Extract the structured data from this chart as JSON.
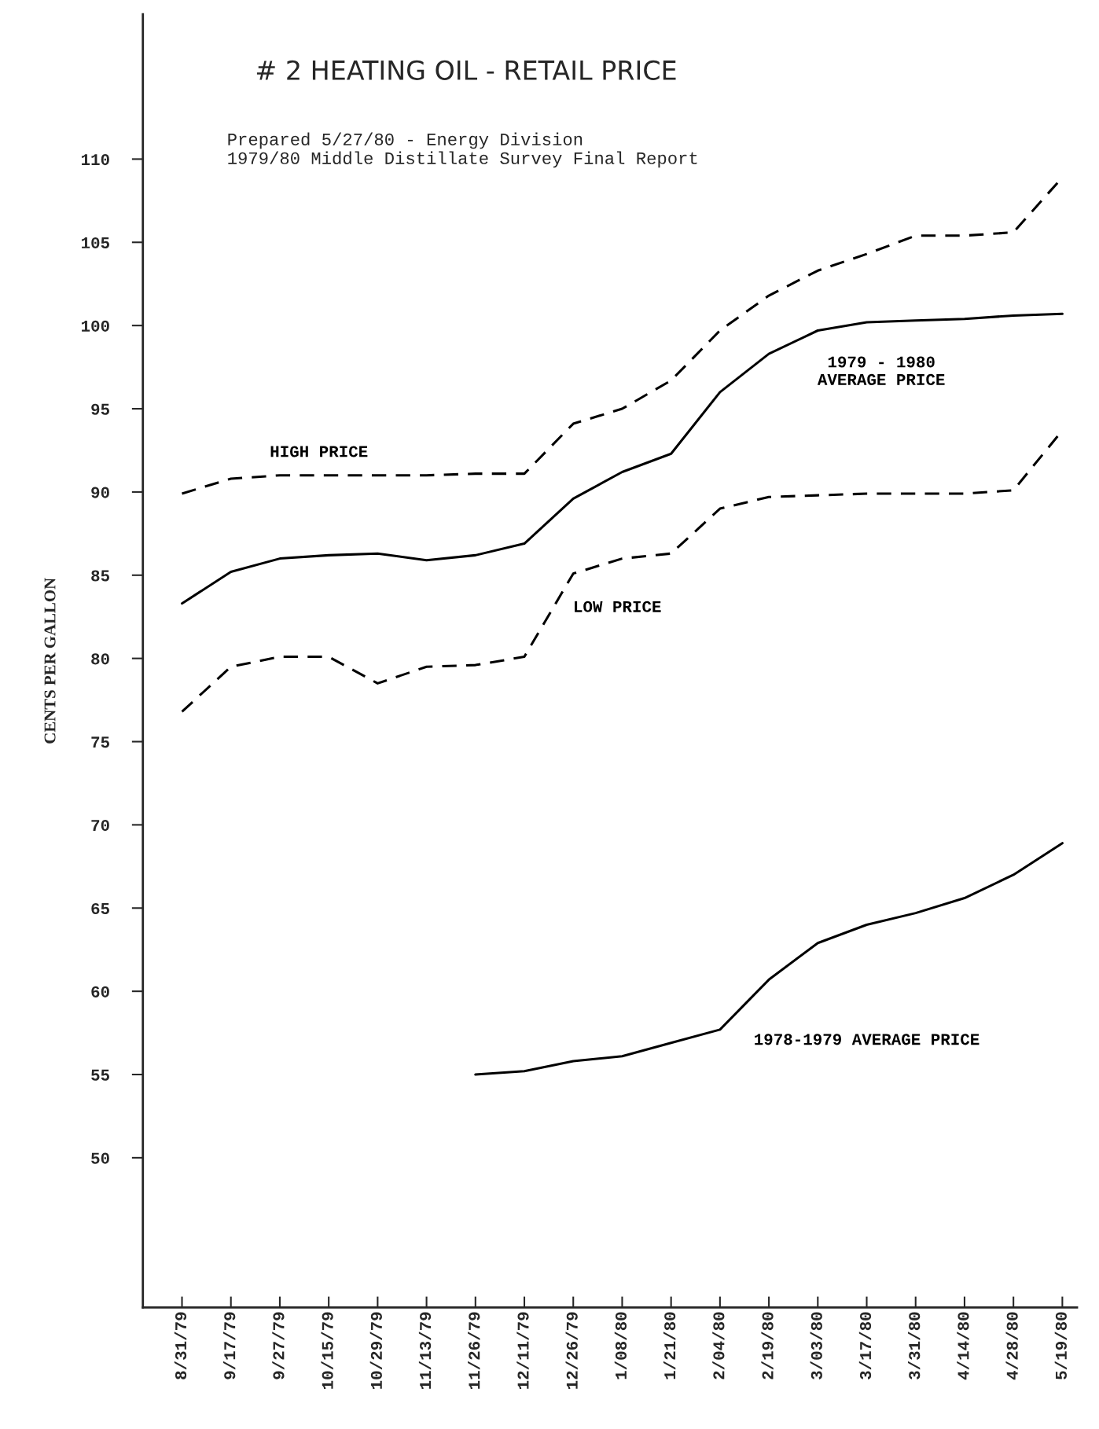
{
  "chart_data": {
    "type": "line",
    "title": "# 2 HEATING OIL - RETAIL PRICE",
    "subtitle": "Prepared 5/27/80 - Energy Division\n1979/80 Middle Distillate Survey Final Report",
    "ylabel": "CENTS PER GALLON",
    "categories": [
      "8/31/79",
      "9/17/79",
      "9/27/79",
      "10/15/79",
      "10/29/79",
      "11/13/79",
      "11/26/79",
      "12/11/79",
      "12/26/79",
      "1/08/80",
      "1/21/80",
      "2/04/80",
      "2/19/80",
      "3/03/80",
      "3/17/80",
      "3/31/80",
      "4/14/80",
      "4/28/80",
      "5/19/80"
    ],
    "series": [
      {
        "name": "HIGH PRICE",
        "color": "#000000",
        "line_style": "dashed",
        "values": [
          89.9,
          90.8,
          91.0,
          91.0,
          91.0,
          91.0,
          91.1,
          91.1,
          94.1,
          95.0,
          96.7,
          99.7,
          101.8,
          103.3,
          104.3,
          105.4,
          105.4,
          105.6,
          108.9
        ]
      },
      {
        "name": "1979 - 1980\nAVERAGE PRICE",
        "color": "#000000",
        "line_style": "solid",
        "values": [
          83.3,
          85.2,
          86.0,
          86.2,
          86.3,
          85.9,
          86.2,
          86.9,
          89.6,
          91.2,
          92.3,
          96.0,
          98.3,
          99.7,
          100.2,
          100.3,
          100.4,
          100.6,
          100.7
        ]
      },
      {
        "name": "LOW PRICE",
        "color": "#000000",
        "line_style": "dashed",
        "values": [
          76.8,
          79.5,
          80.1,
          80.1,
          78.5,
          79.5,
          79.6,
          80.1,
          85.1,
          86.0,
          86.3,
          89.0,
          89.7,
          89.8,
          89.9,
          89.9,
          89.9,
          90.1,
          93.7
        ]
      },
      {
        "name": "1978-1979 AVERAGE PRICE",
        "color": "#000000",
        "line_style": "solid",
        "values": [
          null,
          null,
          null,
          null,
          null,
          null,
          55.0,
          55.2,
          55.8,
          56.1,
          56.9,
          57.7,
          60.7,
          62.9,
          64.0,
          64.7,
          65.6,
          67.0,
          68.9
        ]
      }
    ],
    "ylim": [
      41,
      118.7
    ],
    "yticks": [
      50,
      55,
      60,
      65,
      70,
      75,
      80,
      85,
      90,
      95,
      100,
      105,
      110
    ],
    "grid": false,
    "legend": false,
    "marker": "none"
  }
}
